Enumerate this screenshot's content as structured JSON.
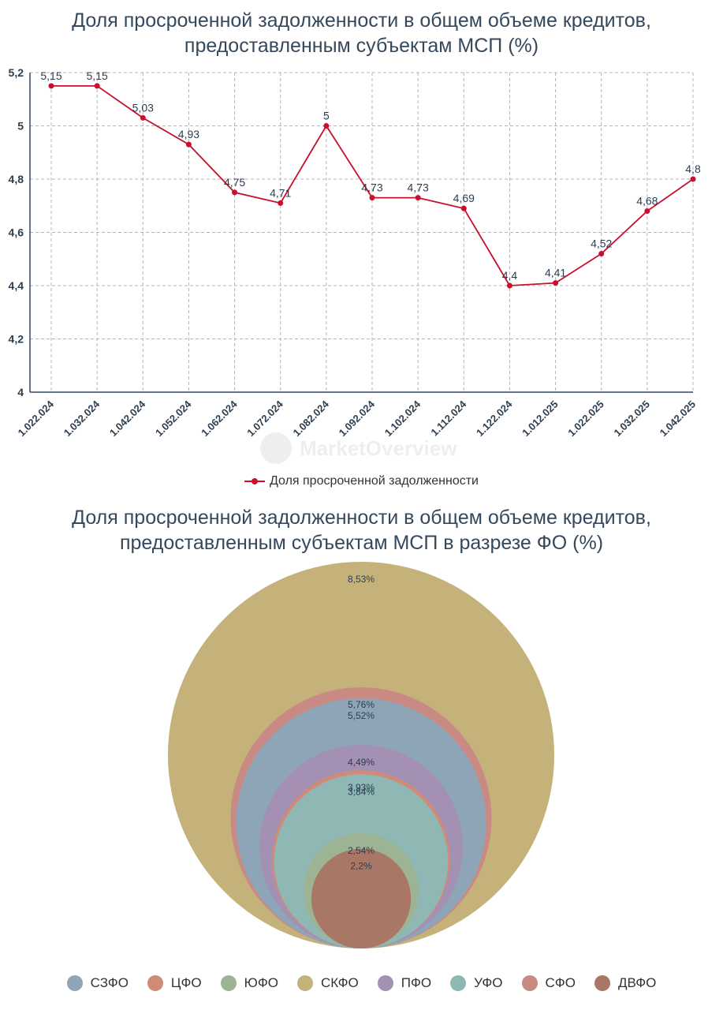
{
  "chart_data": [
    {
      "type": "line",
      "title_lines": [
        "Доля просроченной задолженности в общем объеме кредитов,",
        "предоставленным субъектам МСП (%)"
      ],
      "categories": [
        "1.022.024",
        "1.032.024",
        "1.042.024",
        "1.052.024",
        "1.062.024",
        "1.072.024",
        "1.082.024",
        "1.092.024",
        "1.102.024",
        "1.112.024",
        "1.122.024",
        "1.012.025",
        "1.022.025",
        "1.032.025",
        "1.042.025"
      ],
      "series": [
        {
          "name": "Доля просроченной задолженности",
          "values": [
            5.15,
            5.15,
            5.03,
            4.93,
            4.75,
            4.71,
            5,
            4.73,
            4.73,
            4.69,
            4.4,
            4.41,
            4.52,
            4.68,
            4.8
          ],
          "labels": [
            "5,15",
            "5,15",
            "5,03",
            "4,93",
            "4,75",
            "4,71",
            "5",
            "4,73",
            "4,73",
            "4,69",
            "4,4",
            "4,41",
            "4,52",
            "4,68",
            "4,8"
          ],
          "color": "#c8102e"
        }
      ],
      "ylim": [
        4,
        5.2
      ],
      "yticks": [
        4,
        4.2,
        4.4,
        4.6,
        4.8,
        5,
        5.2
      ],
      "ytick_labels": [
        "4",
        "4,2",
        "4,4",
        "4,6",
        "4,8",
        "5",
        "5,2"
      ],
      "grid": true,
      "legend": "bottom"
    },
    {
      "type": "nested-circles",
      "title_lines": [
        "Доля просроченной задолженности в общем объеме кредитов,",
        "предоставленным субъектам МСП в разрезе ФО (%)"
      ],
      "items": [
        {
          "name": "СКФО",
          "value": 8.53,
          "label": "8,53%",
          "color": "#c4b27a"
        },
        {
          "name": "СФО",
          "value": 5.76,
          "label": "5,76%",
          "color": "#c98a84"
        },
        {
          "name": "СЗФО",
          "value": 5.52,
          "label": "5,52%",
          "color": "#8ea5b8"
        },
        {
          "name": "ПФО",
          "value": 4.49,
          "label": "4,49%",
          "color": "#a390b3"
        },
        {
          "name": "ЦФО",
          "value": 3.93,
          "label": "3,93%",
          "color": "#d08a78"
        },
        {
          "name": "УФО",
          "value": 3.84,
          "label": "3,84%",
          "color": "#8fb8b5"
        },
        {
          "name": "ЮФО",
          "value": 2.54,
          "label": "2,54%",
          "color": "#9db494"
        },
        {
          "name": "ДВФО",
          "value": 2.2,
          "label": "2,2%",
          "color": "#a97766"
        }
      ],
      "legend_order": [
        "СЗФО",
        "ЦФО",
        "ЮФО",
        "СКФО",
        "ПФО",
        "УФО",
        "СФО",
        "ДВФО"
      ],
      "legend": "bottom"
    }
  ],
  "watermark": {
    "text": "MarketOverview"
  }
}
